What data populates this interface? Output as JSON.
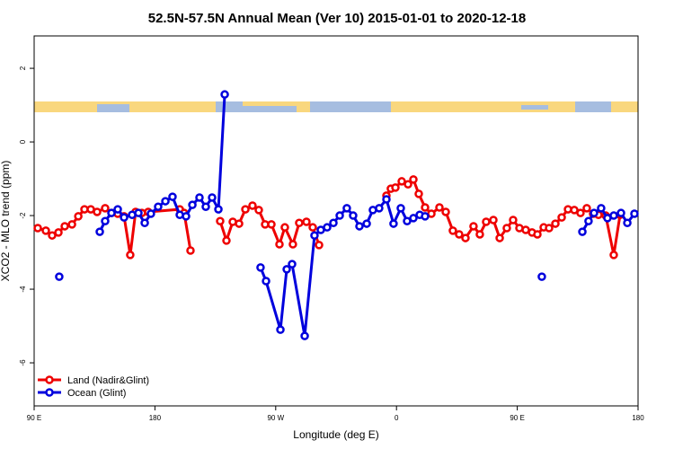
{
  "chart_data": {
    "type": "line",
    "title": "52.5N-57.5N Annual Mean (Ver 10)   2015-01-01 to 2020-12-18",
    "x_label": "Longitude (deg E)",
    "y_label": "XCO2 - MLO trend (ppm)",
    "xlim": [
      90,
      540
    ],
    "ylim": [
      -7.17,
      2.88
    ],
    "xticks": [
      {
        "value": 90,
        "label": "90 E"
      },
      {
        "value": 180,
        "label": "180"
      },
      {
        "value": 270,
        "label": "90 W"
      },
      {
        "value": 360,
        "label": "0"
      },
      {
        "value": 450,
        "label": "90 E"
      },
      {
        "value": 540,
        "label": "180"
      }
    ],
    "yticks": [
      -6,
      -4,
      -2,
      0,
      2
    ],
    "legend": "bottom-left",
    "series": [
      {
        "name": "Land (Nadir&Glint)",
        "color": "#ee0000",
        "x": [
          92.7,
          98.7,
          103.4,
          108.1,
          112.8,
          118.2,
          122.9,
          127.5,
          132.2,
          136.9,
          142.9,
          147.6,
          152.3,
          157.0,
          161.6,
          165.6,
          170.3,
          175.0,
          198.5,
          201.8,
          206.5,
          null,
          228.6,
          233.3,
          238.0,
          242.7,
          247.4,
          252.7,
          257.4,
          262.1,
          266.8,
          272.8,
          276.8,
          282.8,
          287.5,
          292.9,
          297.6,
          302.3,
          null,
          352.5,
          355.8,
          359.2,
          363.9,
          368.6,
          372.6,
          376.6,
          381.3,
          386.0,
          392.0,
          396.7,
          402.0,
          406.7,
          411.4,
          417.4,
          422.1,
          426.8,
          432.2,
          436.9,
          442.2,
          446.9,
          451.6,
          456.3,
          461.0,
          465.0,
          469.7,
          473.7,
          478.4,
          483.1,
          487.8,
          492.5,
          497.1,
          501.8,
          506.5,
          510.5,
          515.9,
          521.9,
          526.6
        ],
        "values": [
          -2.34,
          -2.41,
          -2.54,
          -2.46,
          -2.29,
          -2.24,
          -2.02,
          -1.83,
          -1.83,
          -1.9,
          -1.8,
          -1.93,
          -1.95,
          -2.02,
          -3.07,
          -1.9,
          -1.93,
          -1.9,
          -1.83,
          -1.93,
          -2.95,
          null,
          -2.15,
          -2.68,
          -2.17,
          -2.22,
          -1.83,
          -1.73,
          -1.85,
          -2.24,
          -2.24,
          -2.78,
          -2.32,
          -2.78,
          -2.2,
          -2.17,
          -2.32,
          -2.8,
          null,
          -1.46,
          -1.27,
          -1.24,
          -1.07,
          -1.15,
          -1.02,
          -1.41,
          -1.78,
          -1.95,
          -1.78,
          -1.9,
          -2.41,
          -2.51,
          -2.61,
          -2.29,
          -2.51,
          -2.17,
          -2.12,
          -2.61,
          -2.34,
          -2.12,
          -2.34,
          -2.39,
          -2.46,
          -2.51,
          -2.32,
          -2.34,
          -2.22,
          -2.05,
          -1.83,
          -1.85,
          -1.93,
          -1.8,
          -1.95,
          -1.98,
          -2.0,
          -3.07,
          -1.98
        ]
      },
      {
        "name": "Ocean (Glint)",
        "color": "#0000dd",
        "x": [
          108.7,
          null,
          138.9,
          142.9,
          147.6,
          152.3,
          157.0,
          163.0,
          167.7,
          172.4,
          177.0,
          182.4,
          187.8,
          193.1,
          198.5,
          203.2,
          207.9,
          213.2,
          217.9,
          222.6,
          227.3,
          232.0,
          null,
          258.7,
          262.8,
          273.5,
          278.2,
          282.2,
          291.6,
          298.9,
          303.6,
          308.3,
          313.0,
          317.7,
          323.0,
          327.7,
          332.4,
          337.8,
          342.4,
          347.1,
          352.5,
          357.8,
          363.2,
          367.9,
          372.6,
          377.3,
          381.3,
          null,
          468.3,
          null,
          498.5,
          503.1,
          507.2,
          512.5,
          517.2,
          521.9,
          527.3,
          532.0,
          537.3
        ],
        "values": [
          -3.66,
          null,
          -2.44,
          -2.15,
          -1.93,
          -1.83,
          -2.05,
          -1.98,
          -1.93,
          -2.2,
          -1.95,
          -1.76,
          -1.61,
          -1.49,
          -1.98,
          -2.02,
          -1.71,
          -1.51,
          -1.76,
          -1.51,
          -1.83,
          1.29,
          null,
          -3.41,
          -3.78,
          -5.1,
          -3.46,
          -3.32,
          -5.27,
          -2.54,
          -2.39,
          -2.32,
          -2.2,
          -2.0,
          -1.8,
          -2.0,
          -2.29,
          -2.22,
          -1.85,
          -1.8,
          -1.56,
          -2.22,
          -1.8,
          -2.15,
          -2.07,
          -1.98,
          -2.02,
          null,
          -3.66,
          null,
          -2.44,
          -2.15,
          -1.93,
          -1.8,
          -2.07,
          -2.0,
          -1.93,
          -2.2,
          -1.95
        ]
      }
    ]
  }
}
